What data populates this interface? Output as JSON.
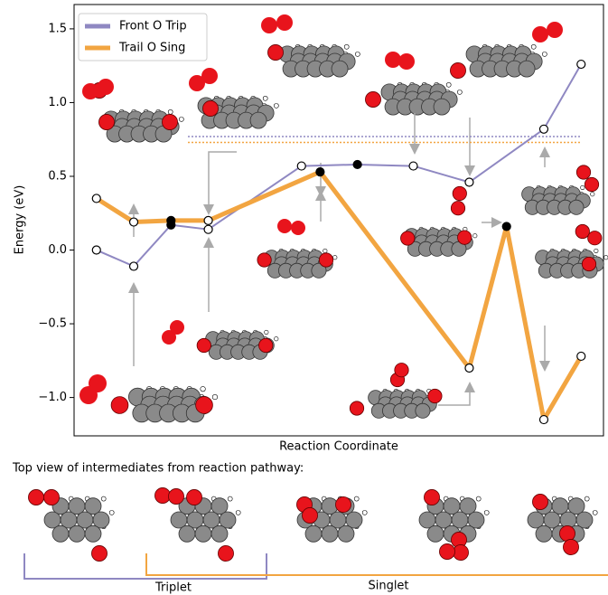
{
  "chart_data": {
    "type": "line",
    "y_label": "Energy (eV)",
    "x_label": "Reaction Coordinate",
    "xlim": [
      -0.6,
      13.6
    ],
    "ylim": [
      -1.26,
      1.665
    ],
    "yticks": [
      {
        "value": -1.0,
        "label": "−1.0"
      },
      {
        "value": -0.5,
        "label": "−0.5"
      },
      {
        "value": 0.0,
        "label": "0.0"
      },
      {
        "value": 0.5,
        "label": "0.5"
      },
      {
        "value": 1.0,
        "label": "1.0"
      },
      {
        "value": 1.5,
        "label": "1.5"
      }
    ],
    "legend": "upper left",
    "series": [
      {
        "name": "Front O Trip",
        "color": "#8f88c2",
        "x": [
          0,
          1,
          2,
          3,
          5.5,
          7,
          8.5,
          10,
          12,
          13
        ],
        "values": [
          0.0,
          -0.11,
          0.17,
          0.14,
          0.57,
          0.58,
          0.57,
          0.46,
          0.82,
          1.26
        ],
        "marker_colors": [
          "white",
          "white",
          "black",
          "white",
          "white",
          "black",
          "white",
          "white",
          "white",
          "white"
        ]
      },
      {
        "name": "Trail O Sing",
        "color": "#f2a541",
        "x": [
          0,
          1,
          2,
          3,
          6,
          10,
          11,
          12,
          13
        ],
        "values": [
          0.35,
          0.19,
          0.2,
          0.2,
          0.53,
          -0.8,
          0.16,
          -1.15,
          -0.72
        ],
        "marker_colors": [
          "white",
          "white",
          "black",
          "white",
          "black",
          "white",
          "black",
          "white",
          "white"
        ]
      }
    ],
    "hlines": [
      {
        "value": 0.77,
        "color": "#8f88c2"
      },
      {
        "value": 0.73,
        "color": "#f2a541"
      }
    ],
    "annotations": {
      "caption": "Top view of intermediates from reaction pathway:",
      "triplet": "Triplet",
      "singlet": "Singlet"
    }
  }
}
